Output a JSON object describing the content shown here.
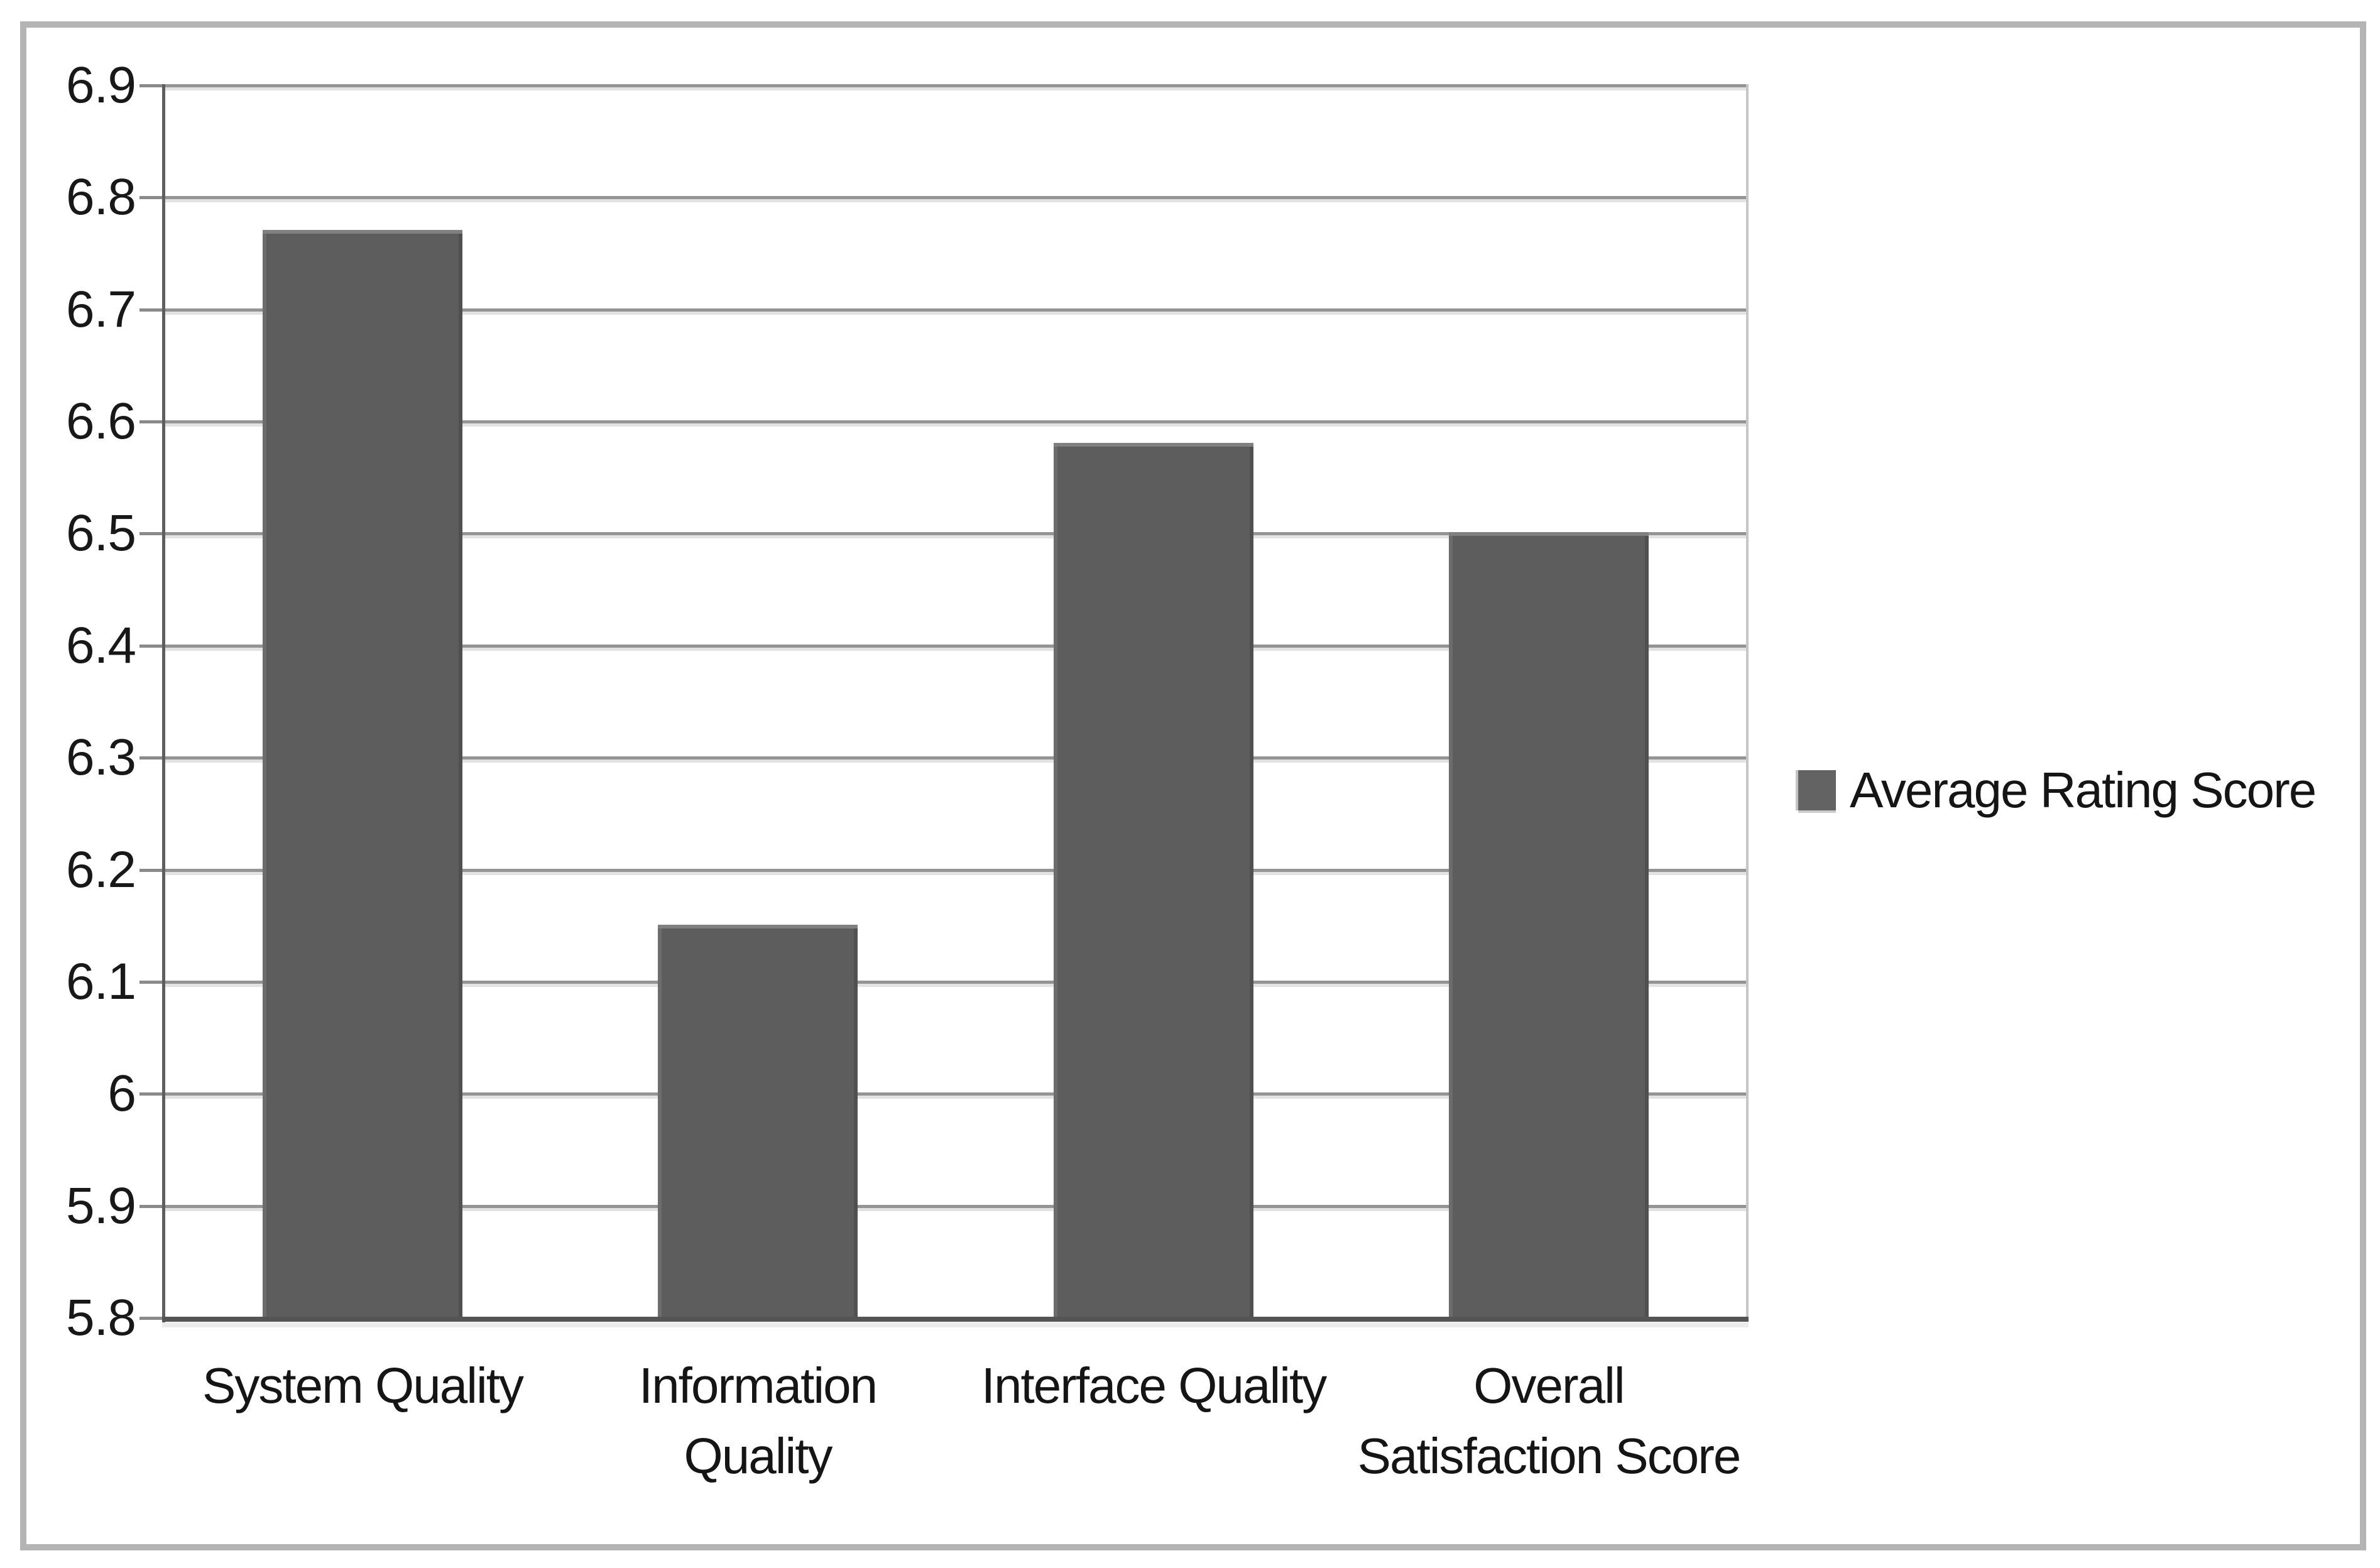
{
  "chart_data": {
    "type": "bar",
    "title": "",
    "xlabel": "",
    "ylabel": "",
    "categories": [
      "System Quality",
      "Information Quality",
      "Interface Quality",
      "Overall Satisfaction Score"
    ],
    "series": [
      {
        "name": "Average Rating Score",
        "values": [
          6.77,
          6.15,
          6.58,
          6.5
        ]
      }
    ],
    "ylim": [
      5.8,
      6.9
    ],
    "ytick_step": 0.1,
    "ytick_labels": [
      "6.9",
      "6.8",
      "6.7",
      "6.6",
      "6.5",
      "6.4",
      "6.3",
      "6.2",
      "6.1",
      "6",
      "5.9",
      "5.8"
    ],
    "xtick_labels": [
      "System Quality",
      "Information\nQuality",
      "Interface Quality",
      "Overall\nSatisfaction Score"
    ],
    "grid": true,
    "legend": [
      "Average Rating Score"
    ],
    "legend_position": "right-middle",
    "bar_color": "#5d5d5d",
    "gridline_color": "#949494",
    "axis_color": "#545454",
    "frame_border_color": "#b4b4b4"
  }
}
